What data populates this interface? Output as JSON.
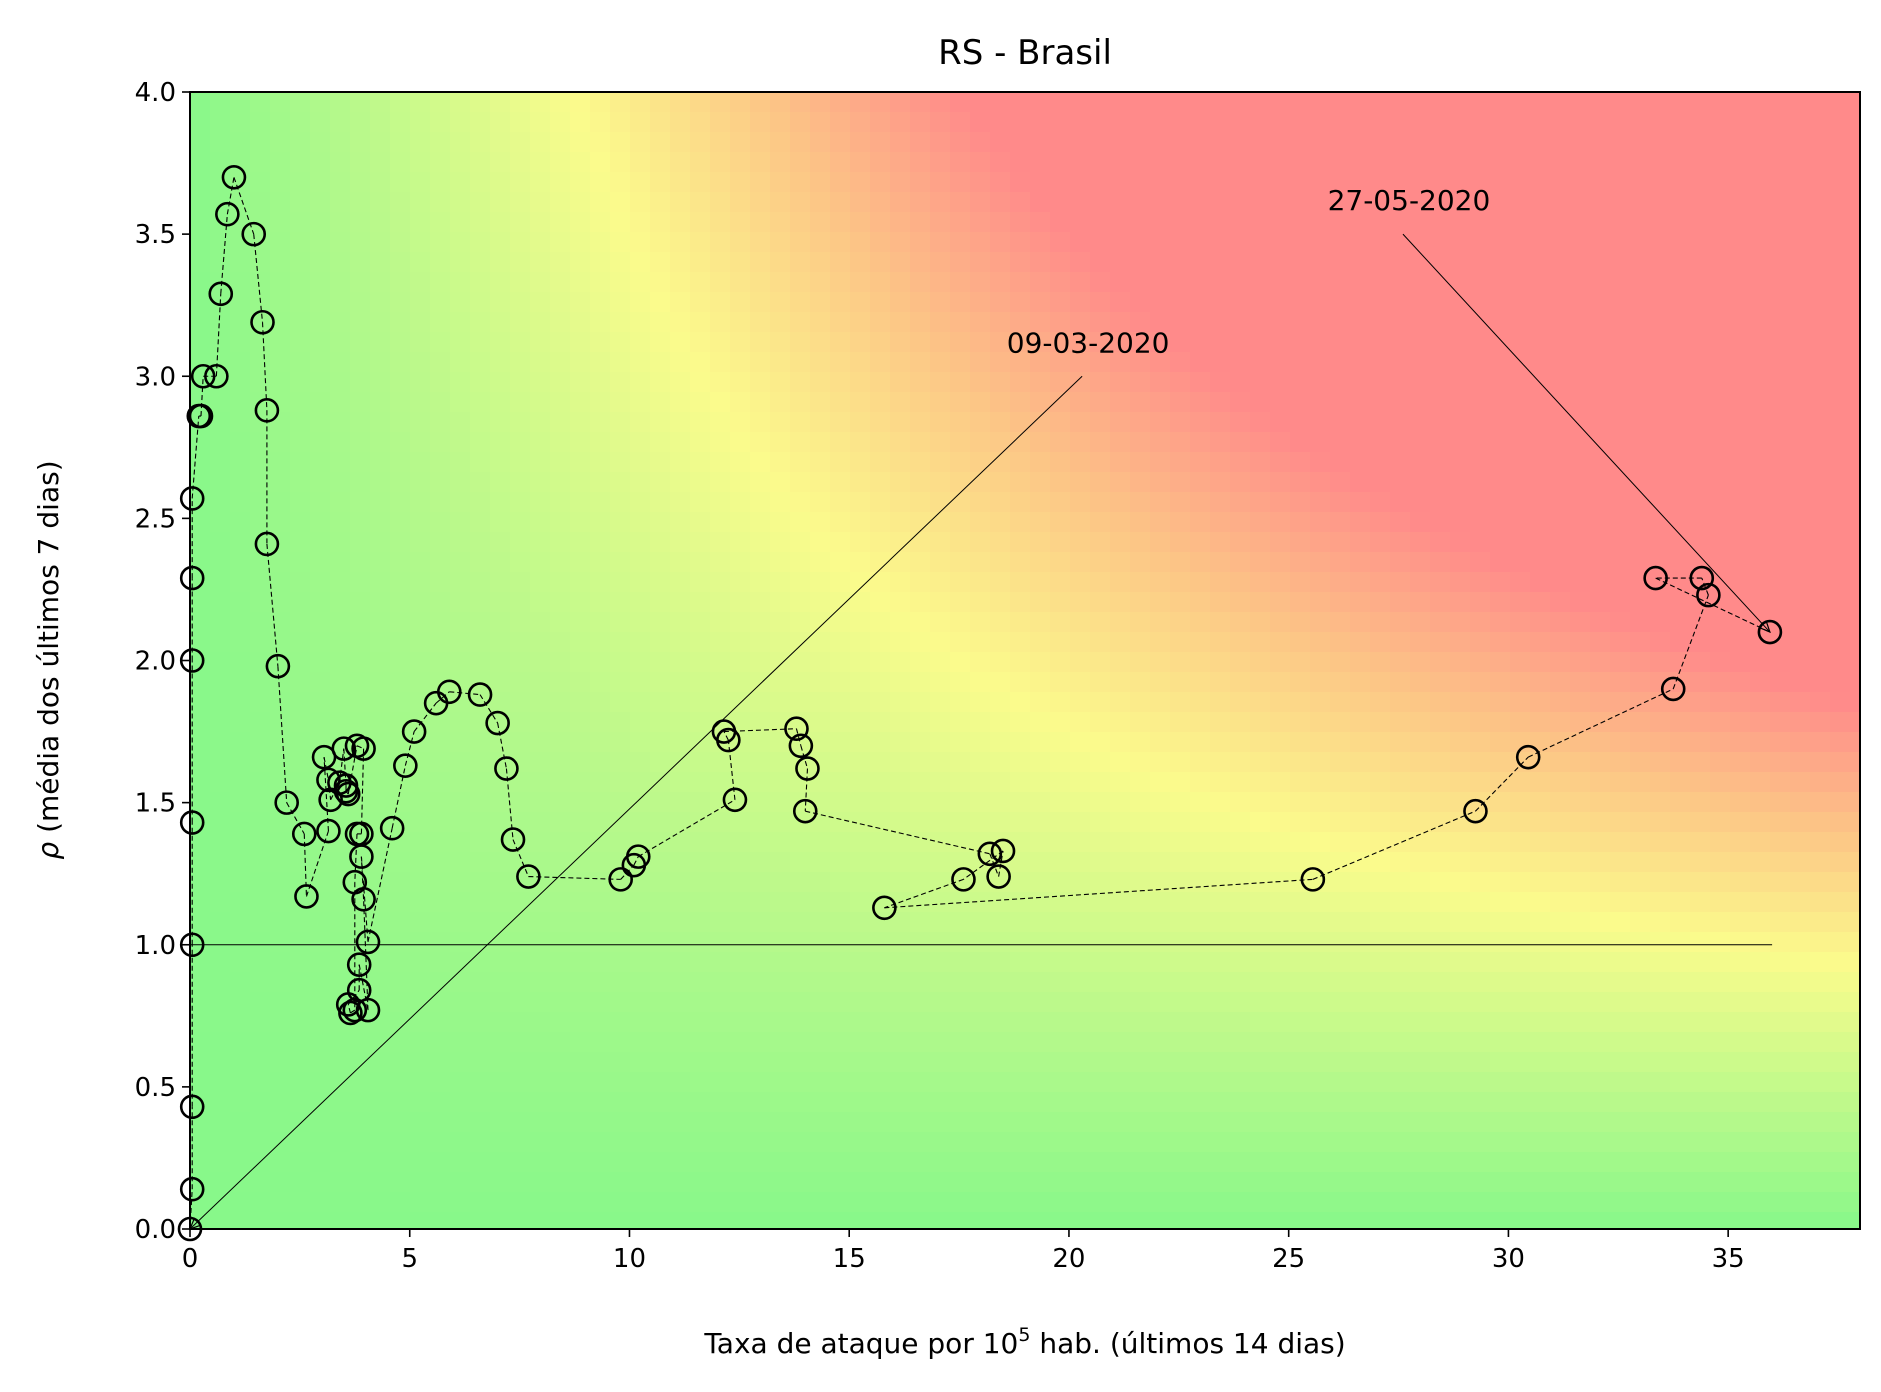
{
  "chart_data": {
    "type": "scatter",
    "title": "RS - Brasil",
    "xlabel_main": "Taxa de ataque por 10",
    "xlabel_sup": "5",
    "xlabel_rest": " hab. (últimos 14 dias)",
    "ylabel_symbol": "ρ",
    "ylabel_rest": " (média dos últimos 7 dias)",
    "xlim": [
      0,
      38
    ],
    "ylim": [
      0,
      4
    ],
    "xticks": [
      0,
      5,
      10,
      15,
      20,
      25,
      30,
      35
    ],
    "xtick_labels": [
      "0",
      "5",
      "10",
      "15",
      "20",
      "25",
      "30",
      "35"
    ],
    "yticks": [
      0,
      0.5,
      1,
      1.5,
      2,
      2.5,
      3,
      3.5,
      4
    ],
    "ytick_labels": [
      "0.0",
      "0.5",
      "1.0",
      "1.5",
      "2.0",
      "2.5",
      "3.0",
      "3.5",
      "4.0"
    ],
    "background": "green-yellow-red risk gradient",
    "colors": {
      "low": "#88f88a",
      "mid": "#fbfb8c",
      "orange": "#fcc586",
      "high": "#ff8a8a",
      "marker": "#000000"
    },
    "reference_line": {
      "y": 1,
      "x": [
        0,
        36
      ]
    },
    "annotations": [
      {
        "text": "09-03-2020",
        "text_at": [
          20.3,
          3.0
        ],
        "point_at": [
          0,
          0
        ]
      },
      {
        "text": "27-05-2020",
        "text_at": [
          27.6,
          3.5
        ],
        "point_at": [
          35.95,
          2.1
        ]
      }
    ],
    "series": [
      {
        "x": [
          0,
          0.05,
          0.05,
          0.05,
          0.05,
          0.05,
          0.05,
          0.05,
          0.2,
          0.25,
          0.3,
          0.6,
          0.7,
          0.85,
          1.0,
          1.45,
          1.65,
          1.75,
          1.75,
          2.0,
          2.2,
          2.6,
          2.65,
          3.15,
          3.05,
          3.15,
          3.2,
          3.4,
          3.5,
          3.55,
          3.55,
          3.6,
          3.8,
          3.95,
          3.9,
          3.8,
          3.75,
          3.75,
          3.65,
          3.6,
          3.85,
          3.85,
          4.05,
          3.95,
          3.9,
          4.05,
          4.6,
          4.9,
          5.1,
          5.6,
          5.9,
          6.6,
          7.0,
          7.2,
          7.35,
          7.7,
          9.8,
          10.1,
          10.2,
          12.4,
          12.25,
          12.15,
          13.8,
          13.9,
          14.05,
          14.0,
          18.2,
          18.4,
          18.5,
          17.6,
          15.8,
          25.55,
          29.25,
          30.45,
          33.75,
          34.55,
          34.4,
          33.35,
          35.95
        ],
        "y": [
          0,
          0.14,
          0.43,
          1.0,
          1.43,
          2.0,
          2.29,
          2.57,
          2.86,
          2.86,
          3.0,
          3.0,
          3.29,
          3.57,
          3.7,
          3.5,
          3.19,
          2.88,
          2.41,
          1.98,
          1.5,
          1.39,
          1.17,
          1.4,
          1.66,
          1.58,
          1.51,
          1.57,
          1.69,
          1.56,
          1.54,
          1.53,
          1.7,
          1.69,
          1.39,
          1.39,
          1.22,
          0.77,
          0.76,
          0.79,
          0.84,
          0.93,
          0.77,
          1.16,
          1.31,
          1.01,
          1.41,
          1.63,
          1.75,
          1.85,
          1.89,
          1.88,
          1.78,
          1.62,
          1.37,
          1.24,
          1.23,
          1.28,
          1.31,
          1.51,
          1.72,
          1.75,
          1.76,
          1.7,
          1.62,
          1.47,
          1.32,
          1.24,
          1.33,
          1.23,
          1.13,
          1.23,
          1.47,
          1.66,
          1.9,
          2.23,
          2.29,
          2.29,
          2.1
        ]
      }
    ]
  }
}
